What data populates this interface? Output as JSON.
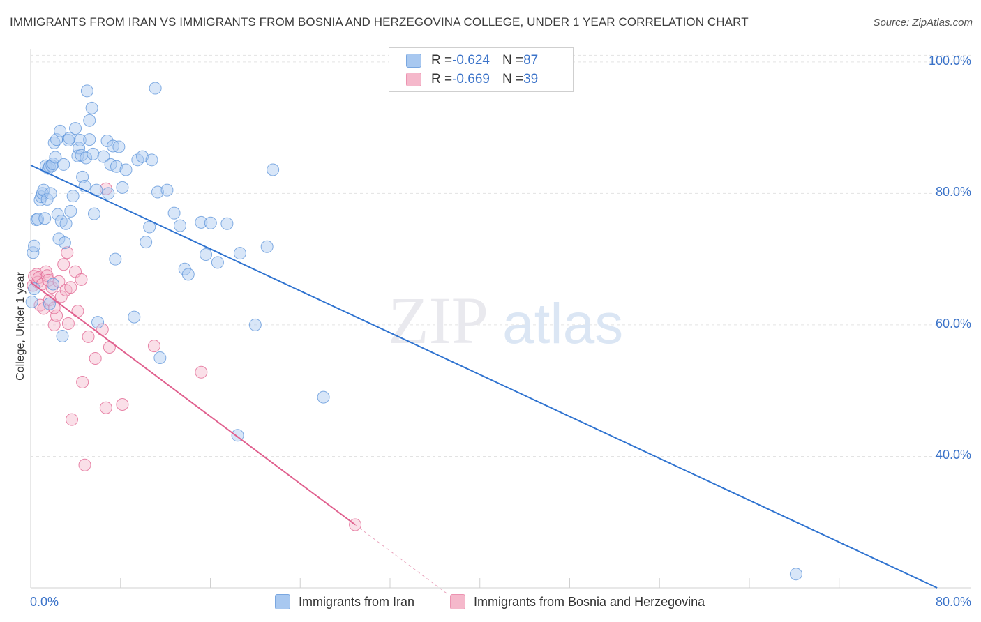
{
  "header": {
    "title": "IMMIGRANTS FROM IRAN VS IMMIGRANTS FROM BOSNIA AND HERZEGOVINA COLLEGE, UNDER 1 YEAR CORRELATION CHART",
    "source": "Source: ZipAtlas.com"
  },
  "watermark": {
    "zip": "ZIP",
    "atlas": "atlas"
  },
  "legend": {
    "iran": {
      "r_label": "R = ",
      "r_value": "-0.624",
      "n_label": "N = ",
      "n_value": "87",
      "color": "#a8c8f0"
    },
    "bosnia": {
      "r_label": "R = ",
      "r_value": "-0.669",
      "n_label": "N = ",
      "n_value": "39",
      "color": "#f5b8cb"
    }
  },
  "bottom_legend": {
    "iran": "Immigrants from Iran",
    "bosnia": "Immigrants from Bosnia and Herzegovina"
  },
  "chart_data": {
    "type": "scatter",
    "title": "IMMIGRANTS FROM IRAN VS IMMIGRANTS FROM BOSNIA AND HERZEGOVINA COLLEGE, UNDER 1 YEAR CORRELATION CHART",
    "xlabel": "",
    "ylabel": "College, Under 1 year",
    "xlim": [
      0,
      80
    ],
    "ylim": [
      20,
      102
    ],
    "x_tick_labels": [
      "0.0%",
      "80.0%"
    ],
    "y_ticks": [
      40,
      60,
      80,
      100
    ],
    "y_tick_labels": [
      "40.0%",
      "60.0%",
      "80.0%",
      "100.0%"
    ],
    "grid": true,
    "legend_position": "top-center",
    "series": [
      {
        "name": "Immigrants from Iran",
        "color": "#5b93d9",
        "fill": "#a8c8f0",
        "r": -0.624,
        "n": 87,
        "trend": {
          "x": [
            0,
            77.1
          ],
          "y": [
            84.3,
            20
          ]
        },
        "points": [
          [
            0.1,
            63.5
          ],
          [
            0.2,
            71
          ],
          [
            0.3,
            72
          ],
          [
            0.5,
            76
          ],
          [
            0.6,
            76.1
          ],
          [
            0.8,
            79
          ],
          [
            0.9,
            79.5
          ],
          [
            1,
            80
          ],
          [
            1.1,
            80.5
          ],
          [
            1.2,
            76.2
          ],
          [
            1.3,
            84.2
          ],
          [
            1.4,
            79.1
          ],
          [
            1.5,
            83.8
          ],
          [
            1.6,
            63.2
          ],
          [
            1.6,
            84.1
          ],
          [
            1.7,
            80
          ],
          [
            1.8,
            84.2
          ],
          [
            1.9,
            84.5
          ],
          [
            2,
            87.7
          ],
          [
            2.1,
            85.5
          ],
          [
            2.2,
            88.2
          ],
          [
            2.3,
            76.8
          ],
          [
            2.4,
            73.1
          ],
          [
            2.5,
            89.5
          ],
          [
            2.6,
            75.8
          ],
          [
            2.7,
            58.3
          ],
          [
            2.8,
            84.4
          ],
          [
            2.9,
            72.5
          ],
          [
            3,
            75.4
          ],
          [
            3.2,
            88.1
          ],
          [
            3.3,
            88.4
          ],
          [
            3.4,
            77.3
          ],
          [
            3.6,
            79.6
          ],
          [
            3.8,
            89.9
          ],
          [
            4,
            85.7
          ],
          [
            4.1,
            86.9
          ],
          [
            4.2,
            88.1
          ],
          [
            4.3,
            85.8
          ],
          [
            4.4,
            82.5
          ],
          [
            4.6,
            81.1
          ],
          [
            4.7,
            85.4
          ],
          [
            4.8,
            95.6
          ],
          [
            5,
            88.2
          ],
          [
            5,
            91.1
          ],
          [
            5.2,
            93
          ],
          [
            5.3,
            86
          ],
          [
            5.4,
            76.9
          ],
          [
            5.6,
            80.5
          ],
          [
            5.7,
            60.4
          ],
          [
            6.2,
            85.6
          ],
          [
            6.5,
            88
          ],
          [
            6.6,
            80
          ],
          [
            6.8,
            84.4
          ],
          [
            7,
            87.2
          ],
          [
            7.2,
            70
          ],
          [
            7.3,
            84.1
          ],
          [
            7.5,
            87.1
          ],
          [
            7.8,
            80.9
          ],
          [
            8.1,
            83.6
          ],
          [
            8.8,
            61.2
          ],
          [
            9.1,
            85.1
          ],
          [
            9.5,
            85.6
          ],
          [
            9.8,
            72.6
          ],
          [
            10.1,
            74.9
          ],
          [
            10.3,
            85.1
          ],
          [
            10.6,
            96
          ],
          [
            10.8,
            80.2
          ],
          [
            11,
            55
          ],
          [
            11.6,
            80.5
          ],
          [
            12.2,
            77
          ],
          [
            12.7,
            75.1
          ],
          [
            13.1,
            68.5
          ],
          [
            13.4,
            67.7
          ],
          [
            14.5,
            75.6
          ],
          [
            14.9,
            70.7
          ],
          [
            15.3,
            75.5
          ],
          [
            15.9,
            69.5
          ],
          [
            16.7,
            75.4
          ],
          [
            17.6,
            43.2
          ],
          [
            17.8,
            70.9
          ],
          [
            19.1,
            60
          ],
          [
            20.1,
            71.9
          ],
          [
            20.6,
            83.6
          ],
          [
            24.9,
            49
          ],
          [
            65.1,
            22.1
          ],
          [
            0.3,
            65.5
          ],
          [
            1.9,
            66.2
          ]
        ]
      },
      {
        "name": "Immigrants from Bosnia and Herzegovina",
        "color": "#e0608e",
        "fill": "#f5b8cb",
        "r": -0.669,
        "n": 39,
        "trend": {
          "x": [
            0,
            27.6
          ],
          "y": [
            66.5,
            29.6
          ]
        },
        "trend_extension": {
          "x": [
            27.6,
            35.5
          ],
          "y": [
            29.6,
            19
          ]
        },
        "points": [
          [
            0.2,
            66
          ],
          [
            0.3,
            67.4
          ],
          [
            0.5,
            67.7
          ],
          [
            0.6,
            66.5
          ],
          [
            0.7,
            67.2
          ],
          [
            0.8,
            63
          ],
          [
            1,
            66.2
          ],
          [
            1.1,
            62.5
          ],
          [
            1.3,
            68.1
          ],
          [
            1.4,
            67.5
          ],
          [
            1.5,
            66.8
          ],
          [
            1.6,
            63.8
          ],
          [
            1.8,
            65.7
          ],
          [
            2,
            60
          ],
          [
            2.2,
            61.4
          ],
          [
            2.4,
            66.6
          ],
          [
            2.6,
            64.3
          ],
          [
            2.8,
            69.2
          ],
          [
            3,
            65.3
          ],
          [
            3.1,
            71
          ],
          [
            3.2,
            60.2
          ],
          [
            3.4,
            65.7
          ],
          [
            3.5,
            45.6
          ],
          [
            3.8,
            68.1
          ],
          [
            4,
            62.1
          ],
          [
            4.3,
            66.9
          ],
          [
            4.4,
            51.3
          ],
          [
            4.6,
            38.7
          ],
          [
            4.9,
            58.2
          ],
          [
            5.5,
            54.9
          ],
          [
            6.1,
            59.3
          ],
          [
            6.4,
            47.4
          ],
          [
            6.7,
            56.6
          ],
          [
            6.4,
            80.7
          ],
          [
            7.8,
            47.9
          ],
          [
            10.5,
            56.8
          ],
          [
            14.5,
            52.8
          ],
          [
            27.6,
            29.6
          ],
          [
            2,
            62.6
          ]
        ]
      }
    ]
  }
}
